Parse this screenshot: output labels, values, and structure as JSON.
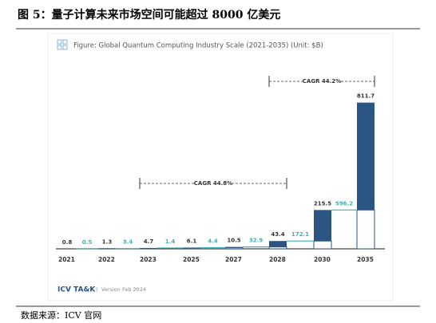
{
  "heading": "图 5：量子计算未来市场空间可能超过 8000 亿美元",
  "source": "数据来源：ICV 官网",
  "chart_data": {
    "type": "waterfall",
    "title": "Figure: Global Quantum Computing Industry Scale (2021-2035) (Unit: $B)",
    "categories": [
      "2021",
      "2022",
      "2023",
      "2025",
      "2027",
      "2028",
      "2030",
      "2035"
    ],
    "values": [
      0.8,
      1.3,
      4.7,
      6.1,
      10.5,
      43.4,
      215.5,
      811.7
    ],
    "increments": [
      0.5,
      3.4,
      1.4,
      4.4,
      32.9,
      172.1,
      596.2
    ],
    "color": "#2b5582",
    "increment_color": "#3bb3b0",
    "ylim": [
      0,
      850
    ],
    "annotations": [
      "CAGR 44.8%",
      "CAGR 44.2%"
    ],
    "brand": "ICV TA&K",
    "version": "Version Feb 2024"
  }
}
